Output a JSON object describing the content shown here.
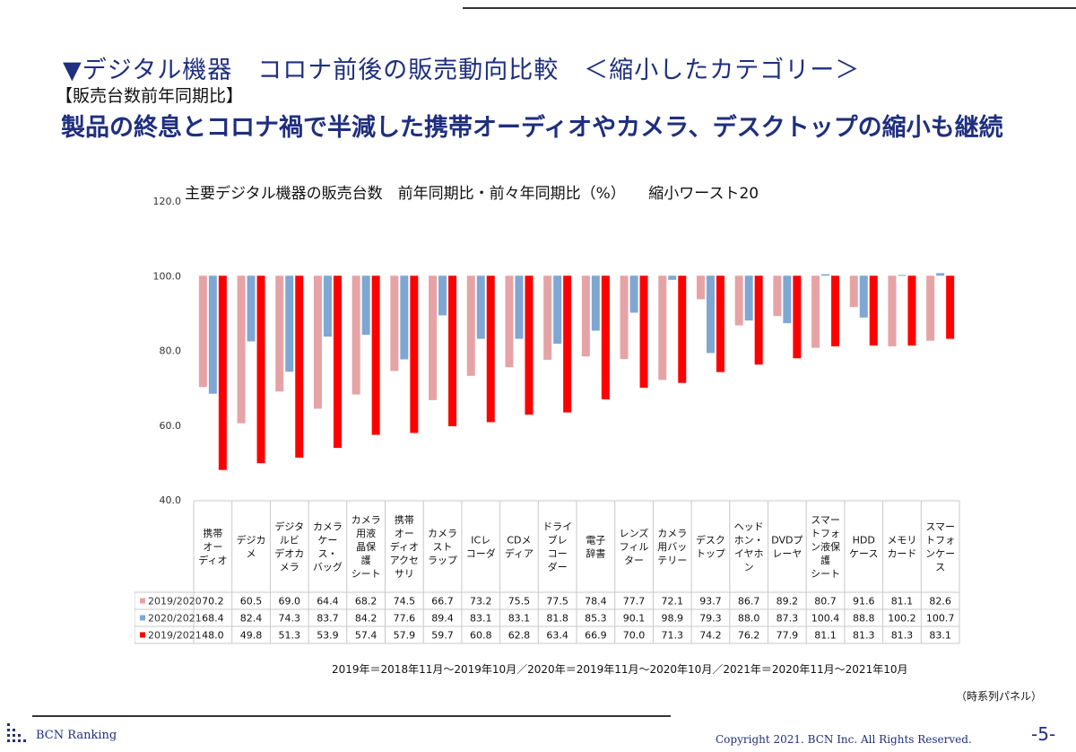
{
  "headline": "▼デジタル機器　コロナ前後の販売動向比較　＜縮小したカテゴリー＞",
  "bracket_label": "【販売台数前年同期比】",
  "subtitle": "製品の終息とコロナ禍で半減した携帯オーディオやカメラ、デスクトップの縮小も継続",
  "footnote": "2019年＝2018年11月～2019年10月／2020年＝2019年11月～2020年10月／2021年＝2020年11月～2021年10月",
  "panel_note": "（時系列パネル）",
  "brand": "BCN Ranking",
  "copyright": "Copyright 2021. BCN Inc. All Rights Reserved.",
  "page_number": "-5-",
  "chart_data": {
    "type": "bar",
    "title": "主要デジタル機器の販売台数　前年同期比・前々年同期比（%）　　縮小ワースト20",
    "ylim": [
      40,
      120
    ],
    "yticks": [
      "40.0",
      "60.0",
      "80.0",
      "100.0",
      "120.0"
    ],
    "grid": false,
    "categories": [
      [
        "携帯",
        "オー",
        "ディオ"
      ],
      [
        "デジカ",
        "メ"
      ],
      [
        "デジタ",
        "ルビ",
        "デオカ",
        "メラ"
      ],
      [
        "カメラ",
        "ケー",
        "ス・",
        "バッグ"
      ],
      [
        "カメラ",
        "用液",
        "晶保",
        "護",
        "シート"
      ],
      [
        "携帯",
        "オー",
        "ディオ",
        "アクセ",
        "サリ"
      ],
      [
        "カメラ",
        "スト",
        "ラップ"
      ],
      [
        "ICレ",
        "コーダ"
      ],
      [
        "CDメ",
        "ディア"
      ],
      [
        "ドライ",
        "ブレ",
        "コー",
        "ダー"
      ],
      [
        "電子",
        "辞書"
      ],
      [
        "レンズ",
        "フィル",
        "ター"
      ],
      [
        "カメラ",
        "用バッ",
        "テリー"
      ],
      [
        "デスク",
        "トップ"
      ],
      [
        "ヘッド",
        "ホン・",
        "イヤホ",
        "ン"
      ],
      [
        "DVDプ",
        "レーヤ"
      ],
      [
        "スマー",
        "トフォ",
        "ン液保",
        "護",
        "シート"
      ],
      [
        "HDD",
        "ケース"
      ],
      [
        "メモリ",
        "カード"
      ],
      [
        "スマー",
        "トフォ",
        "ンケー",
        "ス"
      ]
    ],
    "series": [
      {
        "name": "2019/2020",
        "color": "#e6a3a6",
        "values": [
          70.2,
          60.5,
          69.0,
          64.4,
          68.2,
          74.5,
          66.7,
          73.2,
          75.5,
          77.5,
          78.4,
          77.7,
          72.1,
          93.7,
          86.7,
          89.2,
          80.7,
          91.6,
          81.1,
          82.6
        ]
      },
      {
        "name": "2020/2021",
        "color": "#7fa7d3",
        "values": [
          68.4,
          82.4,
          74.3,
          83.7,
          84.2,
          77.6,
          89.4,
          83.1,
          83.1,
          81.8,
          85.3,
          90.1,
          98.9,
          79.3,
          88.0,
          87.3,
          100.4,
          88.8,
          100.2,
          100.7
        ]
      },
      {
        "name": "2019/2021",
        "color": "#ff0000",
        "values": [
          48.0,
          49.8,
          51.3,
          53.9,
          57.4,
          57.9,
          59.7,
          60.8,
          62.8,
          63.4,
          66.9,
          70.0,
          71.3,
          74.2,
          76.2,
          77.9,
          81.1,
          81.3,
          81.3,
          83.1
        ]
      }
    ]
  }
}
